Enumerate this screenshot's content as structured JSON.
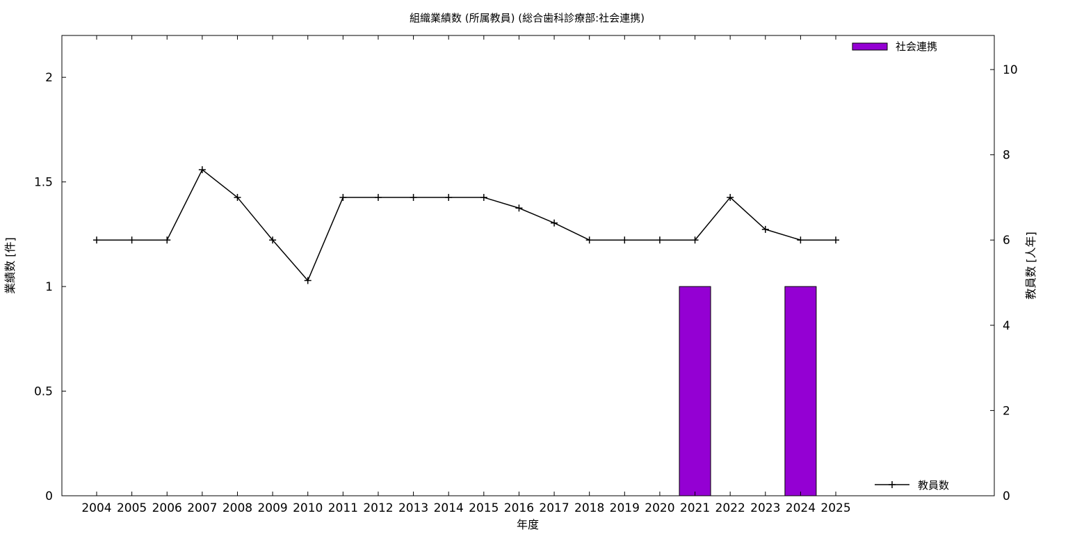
{
  "chart_data": {
    "type": "bar",
    "title": "組織業績数 (所属教員) (総合歯科診療部:社会連携)",
    "xlabel": "年度",
    "ylabel": "業績数 [件]",
    "y2label": "教員数 [人年]",
    "categories": [
      "2004",
      "2005",
      "2006",
      "2007",
      "2008",
      "2009",
      "2010",
      "2011",
      "2012",
      "2013",
      "2014",
      "2015",
      "2016",
      "2017",
      "2018",
      "2019",
      "2020",
      "2021",
      "2022",
      "2023",
      "2024",
      "2025"
    ],
    "ylim": [
      0,
      2.2
    ],
    "yticks": [
      0,
      0.5,
      1,
      1.5,
      2
    ],
    "ytick_labels": [
      "0",
      "0.5",
      "1",
      "1.5",
      "2"
    ],
    "y2lim": [
      0,
      10.8
    ],
    "y2ticks": [
      0,
      2,
      4,
      6,
      8,
      10
    ],
    "y2tick_labels": [
      "0",
      "2",
      "4",
      "6",
      "8",
      "10"
    ],
    "grid": false,
    "series": [
      {
        "name": "社会連携",
        "type": "bar",
        "axis": "left",
        "color": "#9400d3",
        "values": [
          0,
          0,
          0,
          0,
          0,
          0,
          0,
          0,
          0,
          0,
          0,
          0,
          0,
          0,
          0,
          0,
          0,
          1,
          0,
          0,
          1,
          0
        ]
      },
      {
        "name": "教員数",
        "type": "line",
        "axis": "right",
        "color": "#000000",
        "marker": "plus",
        "values": [
          6,
          6,
          6,
          7.65,
          7,
          6,
          5.05,
          7,
          7,
          7,
          7,
          7,
          6.75,
          6.4,
          6,
          6,
          6,
          6,
          7,
          6.25,
          6,
          6
        ]
      }
    ],
    "legend": [
      {
        "label": "社会連携",
        "placement": "top-right"
      },
      {
        "label": "教員数",
        "placement": "bottom-right"
      }
    ]
  }
}
